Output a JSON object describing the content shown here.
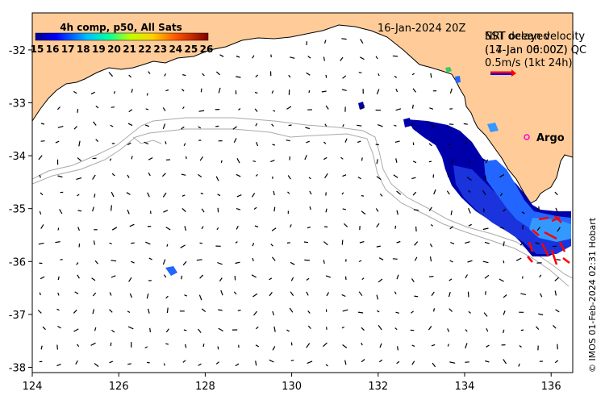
{
  "map": {
    "date_label": "16-Jan-2024 20Z",
    "colorbar": {
      "title": "4h comp, p50, All Sats",
      "ticks": [
        "15",
        "16",
        "17",
        "18",
        "19",
        "20",
        "21",
        "22",
        "23",
        "24",
        "25",
        "26"
      ],
      "range": [
        15,
        26
      ]
    },
    "legend": {
      "line1": "NRT ocean velocity",
      "line2": "(17-Jan 06:00Z) QC",
      "line1_overlap": "SST delayed",
      "line2_overlap": "(14-Jan 00:00Z)",
      "scale": "0.5m/s (1kt 24h)",
      "arrow_color": "#ff0000"
    },
    "argo_label": "Argo",
    "credit": "© IMOS 01-Feb-2024 02:31 Hobart",
    "x_ticks": [
      "124",
      "126",
      "128",
      "130",
      "132",
      "134",
      "136"
    ],
    "y_ticks": [
      "-32",
      "-33",
      "-34",
      "-35",
      "-36",
      "-37",
      "-38"
    ],
    "x_range": [
      124,
      136.5
    ],
    "y_range": [
      -38.1,
      -31.3
    ],
    "colors": {
      "land": "#ffcc99",
      "coast": "#000000",
      "bathymetry": "#aaaaaa",
      "sst_cool": "#0000aa",
      "sst_mid": "#2266ff",
      "sst_light": "#3399ff",
      "currents": "#ff0000",
      "argo": "#ff00cc"
    }
  }
}
